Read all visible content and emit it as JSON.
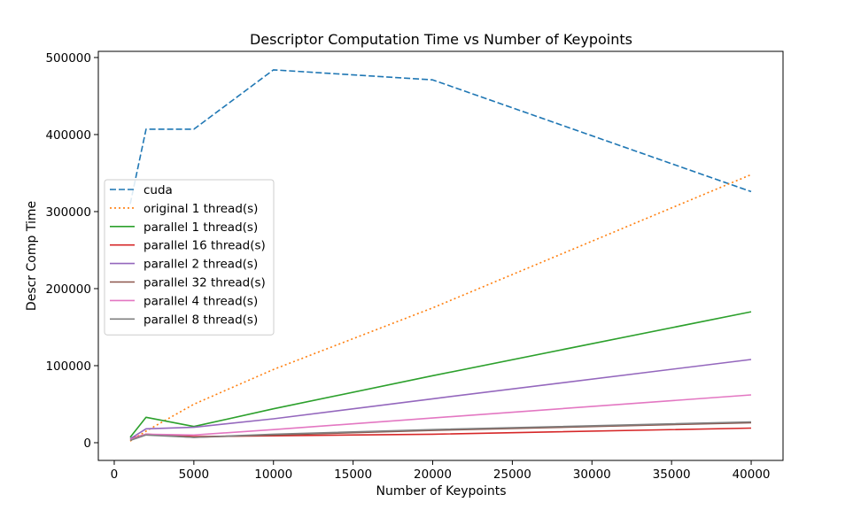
{
  "chart_data": {
    "type": "line",
    "title": "Descriptor Computation Time vs Number of Keypoints",
    "xlabel": "Number of Keypoints",
    "ylabel": "Descr Comp Time",
    "xlim": [
      -1000,
      42000
    ],
    "ylim": [
      -23000,
      508000
    ],
    "xticks": [
      0,
      5000,
      10000,
      15000,
      20000,
      25000,
      30000,
      35000,
      40000
    ],
    "yticks": [
      0,
      100000,
      200000,
      300000,
      400000,
      500000
    ],
    "xtick_labels": [
      "0",
      "5000",
      "10000",
      "15000",
      "20000",
      "25000",
      "30000",
      "35000",
      "40000"
    ],
    "ytick_labels": [
      "0",
      "100000",
      "200000",
      "300000",
      "400000",
      "500000"
    ],
    "grid": false,
    "legend_position": "center-left",
    "x": [
      1000,
      2000,
      5000,
      10000,
      20000,
      40000
    ],
    "series": [
      {
        "name": "cuda",
        "color": "#1f77b4",
        "dash": "dashed",
        "values": [
          310000,
          407000,
          407000,
          484000,
          471000,
          326000
        ]
      },
      {
        "name": "original 1 thread(s)",
        "color": "#ff7f0e",
        "dash": "dotted",
        "values": [
          2000,
          15000,
          50000,
          95000,
          175000,
          348000
        ]
      },
      {
        "name": "parallel 1 thread(s)",
        "color": "#2ca02c",
        "dash": "solid",
        "values": [
          7000,
          33000,
          21000,
          44000,
          87000,
          170000
        ]
      },
      {
        "name": "parallel 16 thread(s)",
        "color": "#d62728",
        "dash": "solid",
        "values": [
          5000,
          11000,
          8000,
          9000,
          11000,
          19000
        ]
      },
      {
        "name": "parallel 2 thread(s)",
        "color": "#9467bd",
        "dash": "solid",
        "values": [
          5000,
          18000,
          20000,
          31000,
          57000,
          108000
        ]
      },
      {
        "name": "parallel 32 thread(s)",
        "color": "#8c564b",
        "dash": "solid",
        "values": [
          4000,
          11000,
          7000,
          10000,
          16000,
          26000
        ]
      },
      {
        "name": "parallel 4 thread(s)",
        "color": "#e377c2",
        "dash": "solid",
        "values": [
          4000,
          11000,
          10000,
          17000,
          32000,
          62000
        ]
      },
      {
        "name": "parallel 8 thread(s)",
        "color": "#7f7f7f",
        "dash": "solid",
        "values": [
          3000,
          10000,
          7000,
          11000,
          17000,
          27000
        ]
      }
    ]
  }
}
